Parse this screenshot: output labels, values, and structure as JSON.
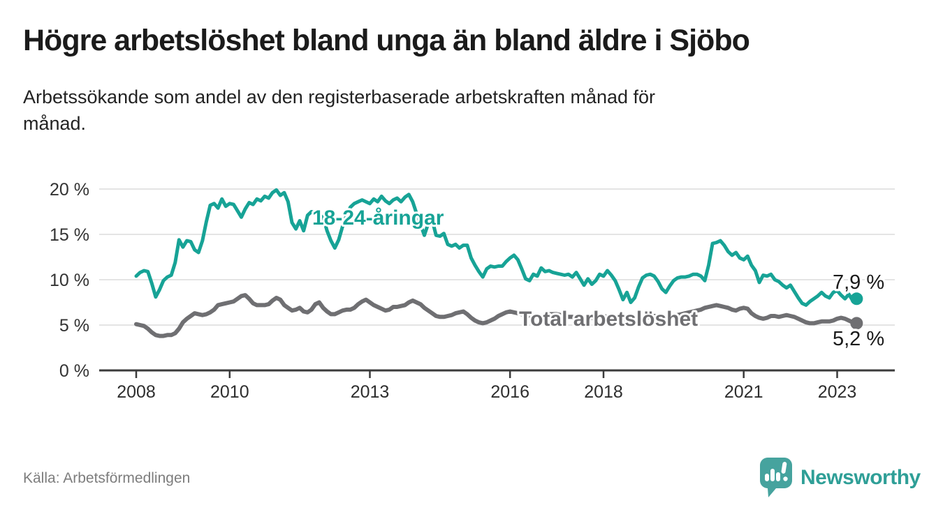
{
  "title": "Högre arbetslöshet bland unga än bland äldre i Sjöbo",
  "subtitle": "Arbetssökande som andel av den registerbaserade arbetskraften månad för\nmånad.",
  "source": "Källa: Arbetsförmedlingen",
  "branding": {
    "name": "Newsworthy",
    "icon_color": "#46a39e",
    "text_color": "#2f9f97"
  },
  "chart_data": {
    "type": "line",
    "title": "Högre arbetslöshet bland unga än bland äldre i Sjöbo",
    "subtitle": "Arbetssökande som andel av den registerbaserade arbetskraften månad för månad.",
    "x_range": [
      "2008-01",
      "2023-06"
    ],
    "x_ticks": [
      {
        "label": "2008",
        "year": 2008
      },
      {
        "label": "2010",
        "year": 2010
      },
      {
        "label": "2013",
        "year": 2013
      },
      {
        "label": "2016",
        "year": 2016
      },
      {
        "label": "2018",
        "year": 2018
      },
      {
        "label": "2021",
        "year": 2021
      },
      {
        "label": "2023",
        "year": 2023
      }
    ],
    "y_ticks": [
      {
        "label": "0 %",
        "value": 0
      },
      {
        "label": "5 %",
        "value": 5
      },
      {
        "label": "10 %",
        "value": 10
      },
      {
        "label": "15 %",
        "value": 15
      },
      {
        "label": "20 %",
        "value": 20
      }
    ],
    "ylim": [
      0,
      21.5
    ],
    "grid": "horizontal",
    "legend_position": "inline-labels",
    "series": [
      {
        "name": "18-24-åringar",
        "color": "#17a396",
        "end_label": "7,9 %",
        "end_value": 7.9,
        "values": [
          10.4,
          10.8,
          11.0,
          10.9,
          9.6,
          8.1,
          8.9,
          9.9,
          10.3,
          10.5,
          11.9,
          14.4,
          13.6,
          14.3,
          14.2,
          13.3,
          13.0,
          14.3,
          16.4,
          18.2,
          18.4,
          17.9,
          18.9,
          18.1,
          18.4,
          18.3,
          17.6,
          16.9,
          17.8,
          18.5,
          18.3,
          18.9,
          18.7,
          19.2,
          19.0,
          19.6,
          19.9,
          19.3,
          19.6,
          18.6,
          16.3,
          15.6,
          16.5,
          15.4,
          17.1,
          17.5,
          17.4,
          17.1,
          16.9,
          15.4,
          14.3,
          13.5,
          14.4,
          15.9,
          17.1,
          18.0,
          18.4,
          18.6,
          18.8,
          18.6,
          18.4,
          18.9,
          18.6,
          19.2,
          18.7,
          18.4,
          18.8,
          19.0,
          18.6,
          19.1,
          19.4,
          18.6,
          17.3,
          16.1,
          14.9,
          16.2,
          16.6,
          14.9,
          14.8,
          15.1,
          13.9,
          13.7,
          13.9,
          13.5,
          13.8,
          13.8,
          12.4,
          11.6,
          10.9,
          10.3,
          11.2,
          11.5,
          11.4,
          11.5,
          11.5,
          12.0,
          12.4,
          12.7,
          12.2,
          11.2,
          10.1,
          9.9,
          10.6,
          10.4,
          11.3,
          10.9,
          11.0,
          10.8,
          10.7,
          10.6,
          10.5,
          10.6,
          10.3,
          10.8,
          10.1,
          9.4,
          10.1,
          9.5,
          9.9,
          10.6,
          10.4,
          11.0,
          10.5,
          9.9,
          8.9,
          7.8,
          8.6,
          7.5,
          8.0,
          9.2,
          10.2,
          10.5,
          10.6,
          10.4,
          9.8,
          9.0,
          8.6,
          9.3,
          9.9,
          10.2,
          10.3,
          10.3,
          10.4,
          10.6,
          10.6,
          10.4,
          9.9,
          11.6,
          14.0,
          14.1,
          14.3,
          13.8,
          13.1,
          12.7,
          13.0,
          12.4,
          12.2,
          12.6,
          11.6,
          11.0,
          9.7,
          10.5,
          10.4,
          10.6,
          10.0,
          9.8,
          9.4,
          9.1,
          9.4,
          8.7,
          8.0,
          7.4,
          7.2,
          7.6,
          7.9,
          8.2,
          8.6,
          8.2,
          8.0,
          8.6,
          8.8,
          8.3,
          7.9,
          8.4,
          7.7,
          7.9
        ]
      },
      {
        "name": "Total arbetslöshet",
        "color": "#6f6f72",
        "end_label": "5,2 %",
        "end_value": 5.2,
        "values": [
          5.1,
          5.0,
          4.9,
          4.6,
          4.2,
          3.9,
          3.8,
          3.8,
          3.9,
          3.9,
          4.1,
          4.6,
          5.3,
          5.7,
          6.0,
          6.3,
          6.2,
          6.1,
          6.2,
          6.4,
          6.7,
          7.2,
          7.3,
          7.4,
          7.5,
          7.6,
          7.9,
          8.2,
          8.3,
          7.9,
          7.4,
          7.2,
          7.2,
          7.2,
          7.3,
          7.7,
          8.0,
          7.8,
          7.2,
          6.9,
          6.6,
          6.7,
          6.9,
          6.5,
          6.4,
          6.7,
          7.3,
          7.5,
          6.9,
          6.5,
          6.2,
          6.2,
          6.4,
          6.6,
          6.7,
          6.7,
          6.9,
          7.3,
          7.6,
          7.8,
          7.5,
          7.2,
          7.0,
          6.8,
          6.6,
          6.7,
          7.0,
          7.0,
          7.1,
          7.2,
          7.5,
          7.7,
          7.5,
          7.3,
          6.9,
          6.6,
          6.3,
          6.0,
          5.9,
          5.9,
          6.0,
          6.1,
          6.3,
          6.4,
          6.5,
          6.2,
          5.8,
          5.5,
          5.3,
          5.2,
          5.3,
          5.5,
          5.7,
          6.0,
          6.2,
          6.4,
          6.5,
          6.4,
          6.3,
          6.2,
          6.1,
          6.0,
          6.0,
          5.9,
          6.0,
          6.1,
          6.2,
          6.2,
          6.2,
          6.1,
          6.0,
          5.9,
          5.9,
          5.8,
          5.8,
          5.7,
          5.7,
          5.8,
          5.9,
          6.0,
          6.0,
          5.9,
          5.8,
          5.6,
          5.4,
          5.3,
          5.2,
          5.3,
          5.4,
          5.5,
          5.7,
          5.8,
          5.9,
          6.0,
          6.0,
          5.9,
          5.9,
          5.9,
          6.0,
          6.1,
          6.2,
          6.3,
          6.4,
          6.5,
          6.6,
          6.7,
          6.9,
          7.0,
          7.1,
          7.2,
          7.1,
          7.0,
          6.9,
          6.7,
          6.6,
          6.8,
          6.9,
          6.8,
          6.3,
          6.0,
          5.8,
          5.7,
          5.8,
          6.0,
          6.0,
          5.9,
          6.0,
          6.1,
          6.0,
          5.9,
          5.7,
          5.5,
          5.3,
          5.2,
          5.2,
          5.3,
          5.4,
          5.4,
          5.4,
          5.5,
          5.7,
          5.8,
          5.7,
          5.5,
          5.3,
          5.2
        ]
      }
    ]
  }
}
